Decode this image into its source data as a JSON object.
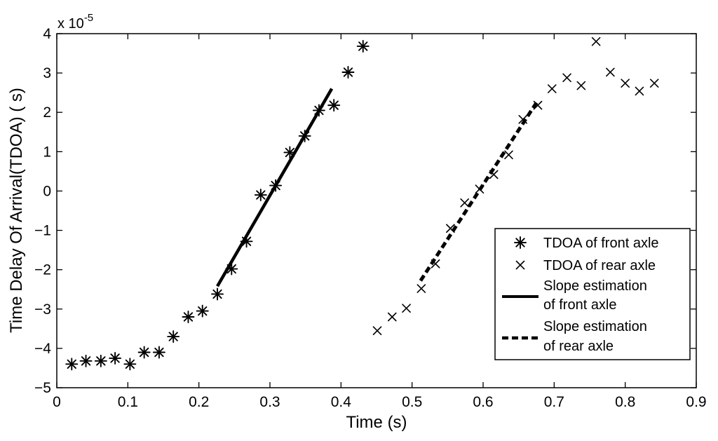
{
  "chart_data": {
    "type": "scatter",
    "title": "",
    "xlabel": "Time (s)",
    "ylabel": "Time Delay Of Arrival(TDOA)  ( s)",
    "y_multiplier_label": "x 10",
    "y_multiplier_exponent": "-5",
    "xlim": [
      0,
      0.9
    ],
    "ylim": [
      -5,
      4
    ],
    "x_ticks": [
      0,
      0.1,
      0.2,
      0.3,
      0.4,
      0.5,
      0.6,
      0.7,
      0.8,
      0.9
    ],
    "x_tick_labels": [
      "0",
      "0.1",
      "0.2",
      "0.3",
      "0.4",
      "0.5",
      "0.6",
      "0.7",
      "0.8",
      "0.9"
    ],
    "y_ticks": [
      -5,
      -4,
      -3,
      -2,
      -1,
      0,
      1,
      2,
      3,
      4
    ],
    "y_tick_labels": [
      "−5",
      "−4",
      "−3",
      "−2",
      "−1",
      "0",
      "1",
      "2",
      "3",
      "4"
    ],
    "grid": false,
    "legend_position": "right",
    "series": [
      {
        "name": "TDOA of front axle",
        "kind": "scatter",
        "marker": "asterisk",
        "x": [
          0.021,
          0.041,
          0.062,
          0.082,
          0.103,
          0.123,
          0.144,
          0.164,
          0.185,
          0.205,
          0.226,
          0.246,
          0.267,
          0.287,
          0.308,
          0.328,
          0.349,
          0.369,
          0.39,
          0.41,
          0.431
        ],
        "y": [
          -4.4,
          -4.32,
          -4.32,
          -4.25,
          -4.4,
          -4.1,
          -4.1,
          -3.7,
          -3.2,
          -3.05,
          -2.62,
          -1.98,
          -1.28,
          -0.1,
          0.14,
          0.98,
          1.4,
          2.05,
          2.18,
          3.02,
          3.68
        ]
      },
      {
        "name": "TDOA of rear axle",
        "kind": "scatter",
        "marker": "x",
        "x": [
          0.451,
          0.472,
          0.492,
          0.513,
          0.533,
          0.554,
          0.574,
          0.595,
          0.615,
          0.636,
          0.656,
          0.677,
          0.697,
          0.718,
          0.738,
          0.759,
          0.779,
          0.8,
          0.82,
          0.841
        ],
        "y": [
          -3.55,
          -3.2,
          -2.98,
          -2.48,
          -1.85,
          -0.95,
          -0.3,
          0.05,
          0.42,
          0.92,
          1.82,
          2.18,
          2.6,
          2.88,
          2.68,
          3.8,
          3.02,
          2.74,
          2.54,
          2.74
        ]
      },
      {
        "name": "Slope estimation of front axle",
        "legend_lines": [
          "Slope estimation",
          "of front axle"
        ],
        "kind": "line",
        "style": "solid",
        "x": [
          0.226,
          0.387
        ],
        "y": [
          -2.42,
          2.6
        ]
      },
      {
        "name": "Slope estimation of rear axle",
        "legend_lines": [
          "Slope estimation",
          "of rear axle"
        ],
        "kind": "line",
        "style": "dashed",
        "x": [
          0.512,
          0.676
        ],
        "y": [
          -2.28,
          2.27
        ]
      }
    ]
  }
}
